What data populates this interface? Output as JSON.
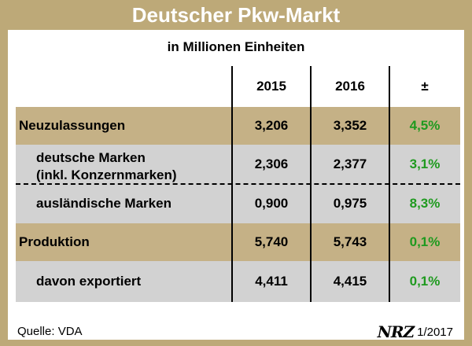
{
  "title": "Deutscher Pkw-Markt",
  "subtitle": "in Millionen Einheiten",
  "chart_data": {
    "type": "table",
    "title": "Deutscher Pkw-Markt",
    "subtitle": "in Millionen Einheiten",
    "columns": [
      "",
      "2015",
      "2016",
      "±"
    ],
    "rows": [
      {
        "label": "Neuzulassungen",
        "v2015": "3,206",
        "v2016": "3,352",
        "change": "4,5%"
      },
      {
        "label": "deutsche Marken",
        "label2": "(inkl. Konzernmarken)",
        "v2015": "2,306",
        "v2016": "2,377",
        "change": "3,1%"
      },
      {
        "label": "ausländische Marken",
        "v2015": "0,900",
        "v2016": "0,975",
        "change": "8,3%"
      },
      {
        "label": "Produktion",
        "v2015": "5,740",
        "v2016": "5,743",
        "change": "0,1%"
      },
      {
        "label": "davon exportiert",
        "v2015": "4,411",
        "v2016": "4,415",
        "change": "0,1%"
      }
    ]
  },
  "footer": {
    "source": "Quelle: VDA",
    "logo_text": "NRZ",
    "date": "1/2017"
  },
  "colors": {
    "frame": "#bda978",
    "tan_row": "#c5b186",
    "grey_row": "#d2d2d2",
    "positive_change": "#1f9a1f"
  }
}
